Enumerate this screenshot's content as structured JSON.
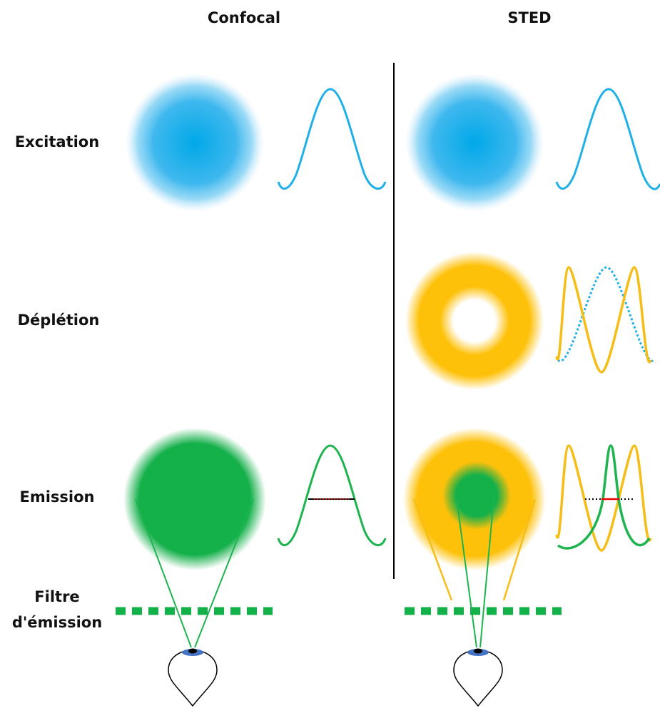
{
  "header": {
    "columns": [
      "Confocal",
      "STED"
    ]
  },
  "rows": [
    "Excitation",
    "Déplétion",
    "Emission"
  ],
  "filter_label": [
    "Filtre",
    "d'émission"
  ]
}
